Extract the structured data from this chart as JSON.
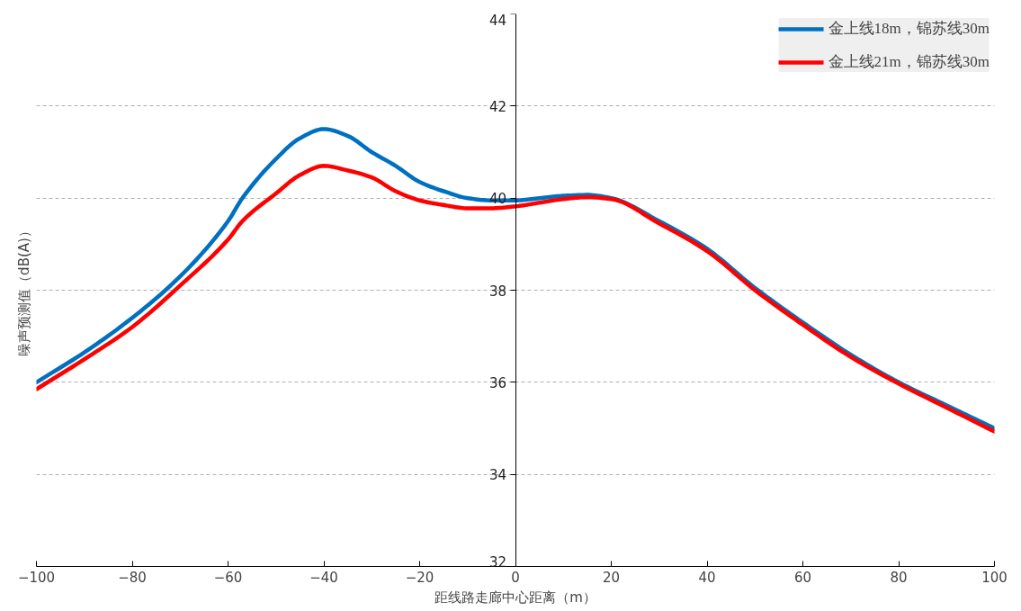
{
  "chart_data": {
    "type": "line",
    "xlabel": "距线路走廊中心距离（m）",
    "ylabel": "噪声预测值（dB(A)）",
    "xlim": [
      -100,
      100
    ],
    "xticks": [
      -100,
      -80,
      -60,
      -40,
      -20,
      0,
      20,
      40,
      60,
      80,
      100
    ],
    "ylim": [
      32,
      44
    ],
    "yticks": [
      32,
      34,
      36,
      38,
      40,
      42,
      44
    ],
    "grid": "y",
    "legend": "top right",
    "line_style": "solid",
    "series": [
      {
        "name": "金上线18m，锦苏线30m",
        "color": "#0070c0",
        "x": [
          -100,
          -90,
          -80,
          -70,
          -60,
          -57,
          -50,
          -45,
          -40,
          -35,
          -30,
          -25,
          -20,
          -15,
          -10,
          -5,
          0,
          5,
          10,
          15,
          20,
          30,
          40,
          50,
          60,
          70,
          80,
          90,
          100
        ],
        "values": [
          36.0,
          36.65,
          37.4,
          38.3,
          39.5,
          40.0,
          40.85,
          41.3,
          41.5,
          41.35,
          41.0,
          40.7,
          40.35,
          40.15,
          40.0,
          39.95,
          39.95,
          40.0,
          40.05,
          40.07,
          40.0,
          39.5,
          38.9,
          38.05,
          37.3,
          36.6,
          36.0,
          35.5,
          35.0
        ]
      },
      {
        "name": "金上线21m，锦苏线30m",
        "color": "#ff0000",
        "x": [
          -100,
          -90,
          -80,
          -70,
          -60,
          -57,
          -50,
          -45,
          -40,
          -35,
          -30,
          -25,
          -20,
          -15,
          -10,
          -5,
          0,
          5,
          10,
          15,
          20,
          30,
          40,
          50,
          60,
          70,
          80,
          90,
          100
        ],
        "values": [
          35.85,
          36.5,
          37.2,
          38.1,
          39.1,
          39.5,
          40.1,
          40.5,
          40.7,
          40.6,
          40.45,
          40.15,
          39.95,
          39.85,
          39.78,
          39.78,
          39.82,
          39.9,
          39.98,
          40.02,
          39.98,
          39.45,
          38.85,
          38.0,
          37.25,
          36.55,
          35.97,
          35.45,
          34.93
        ]
      }
    ]
  }
}
